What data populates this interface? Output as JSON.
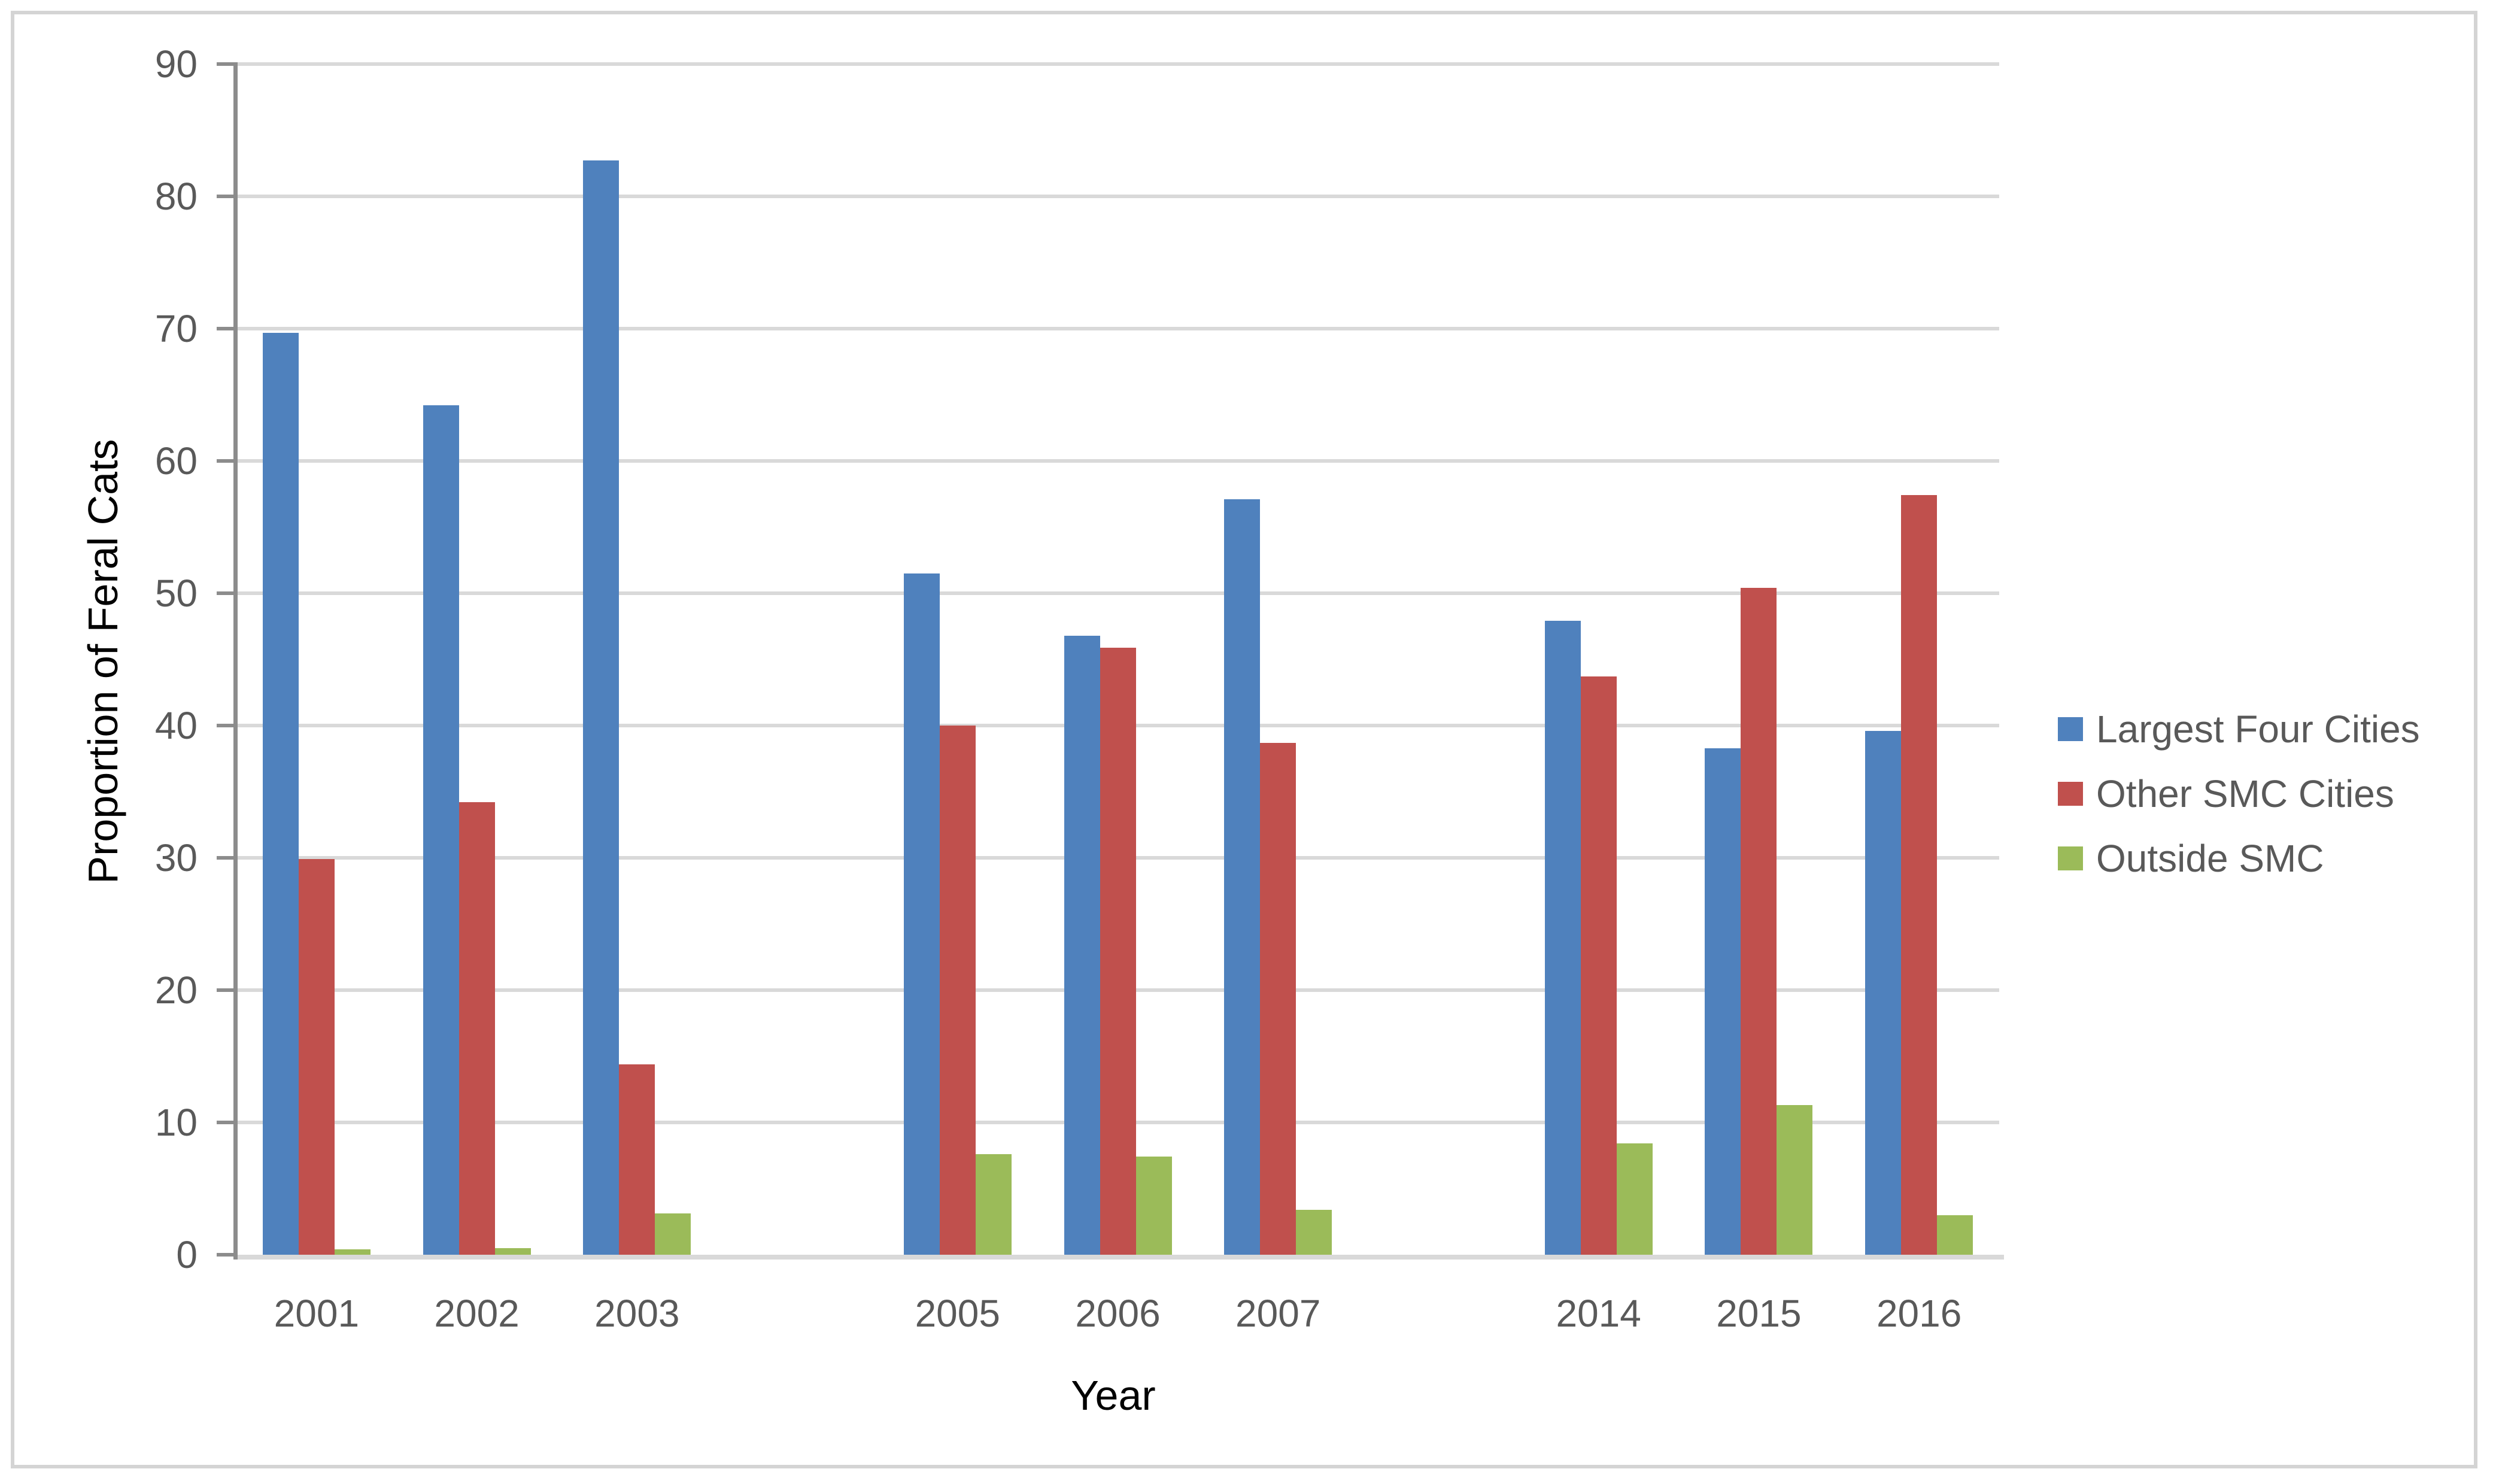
{
  "chart_data": {
    "type": "bar",
    "title": "",
    "xlabel": "Year",
    "ylabel": "Proportion of Feral Cats",
    "ylim": [
      0,
      90
    ],
    "yticks": [
      0,
      10,
      20,
      30,
      40,
      50,
      60,
      70,
      80,
      90
    ],
    "grid": "horizontal gridlines every 10 units",
    "legend_position": "right",
    "categories": [
      "2001",
      "2002",
      "2003",
      "2005",
      "2006",
      "2007",
      "2014",
      "2015",
      "2016"
    ],
    "category_slots": [
      0,
      1,
      2,
      4,
      5,
      6,
      8,
      9,
      10
    ],
    "total_slots": 11,
    "series": [
      {
        "name": "Largest Four Cities",
        "color": "#4F81BD",
        "values": [
          69.7,
          64.2,
          82.7,
          51.5,
          46.8,
          57.1,
          47.9,
          38.3,
          39.6
        ]
      },
      {
        "name": "Other SMC Cities",
        "color": "#C0504D",
        "values": [
          29.9,
          34.2,
          14.4,
          40.0,
          45.9,
          38.7,
          43.7,
          50.4,
          57.4
        ]
      },
      {
        "name": "Outside SMC",
        "color": "#9BBB59",
        "values": [
          0.4,
          0.5,
          3.1,
          7.6,
          7.4,
          3.4,
          8.4,
          11.3,
          3.0
        ]
      }
    ]
  },
  "colors": {
    "background": "#FFFFFF",
    "frame_border": "#D4D4D4",
    "gridline": "#D9D9D9",
    "axis_line": "#8C8C8C",
    "tick_label": "#595959",
    "axis_title": "#000000",
    "legend_text": "#595959"
  }
}
